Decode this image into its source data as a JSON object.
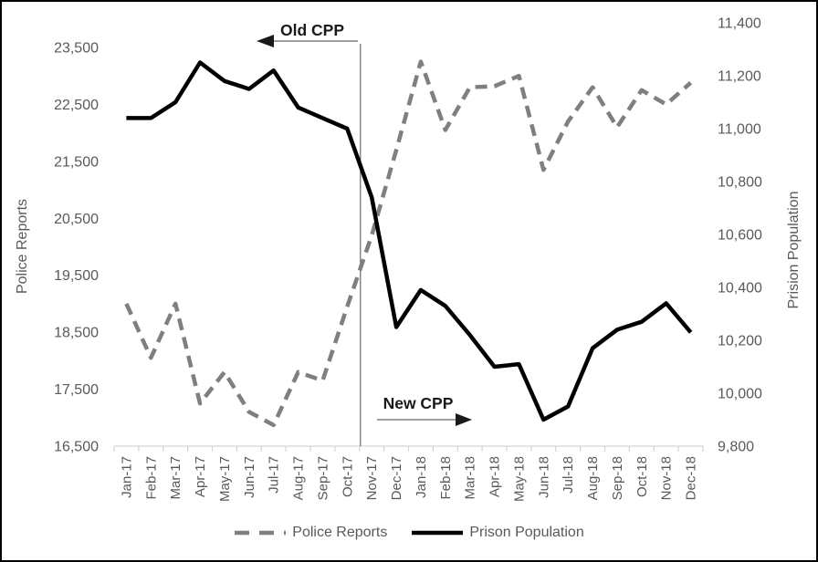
{
  "chart_data": {
    "type": "line",
    "title": "",
    "x_categories": [
      "Jan-17",
      "Feb-17",
      "Mar-17",
      "Apr-17",
      "May-17",
      "Jun-17",
      "Jul-17",
      "Aug-17",
      "Sep-17",
      "Oct-17",
      "Nov-17",
      "Dec-17",
      "Jan-18",
      "Feb-18",
      "Mar-18",
      "Apr-18",
      "May-18",
      "Jun-18",
      "Jul-18",
      "Aug-18",
      "Sep-18",
      "Oct-18",
      "Nov-18",
      "Dec-18"
    ],
    "series": [
      {
        "name": "Police Reports",
        "axis": "left",
        "line_style": "dashed",
        "color": "#7F7F7F",
        "values": [
          19000,
          18050,
          19000,
          17250,
          17800,
          17100,
          16870,
          17800,
          17650,
          18950,
          20200,
          21700,
          23250,
          22050,
          22800,
          22820,
          23000,
          21350,
          22200,
          22800,
          22100,
          22750,
          22500,
          22880
        ]
      },
      {
        "name": "Prison Population",
        "axis": "right",
        "line_style": "solid",
        "color": "#000000",
        "values": [
          11040,
          11040,
          11100,
          11250,
          11180,
          11150,
          11220,
          11080,
          11040,
          11000,
          10740,
          10250,
          10390,
          10330,
          10220,
          10100,
          10110,
          9900,
          9950,
          10170,
          10240,
          10270,
          10340,
          10230
        ]
      }
    ],
    "left_axis": {
      "label": "Police Reports",
      "tick_labels": [
        "16,500",
        "17,500",
        "18,500",
        "19,500",
        "20,500",
        "21,500",
        "22,500",
        "23,500"
      ],
      "range": [
        16500,
        23500
      ]
    },
    "right_axis": {
      "label": "Prision Population",
      "tick_labels": [
        "9,800",
        "10,000",
        "10,200",
        "10,400",
        "10,600",
        "10,800",
        "11,000",
        "11,200",
        "11,400"
      ],
      "range": [
        9800,
        11400
      ]
    },
    "annotations": [
      {
        "id": "old_cpp",
        "label": "Old CPP",
        "arrow_direction": "left"
      },
      {
        "id": "new_cpp",
        "label": "New CPP",
        "arrow_direction": "right"
      }
    ],
    "divider": {
      "between": [
        "Oct-17",
        "Nov-17"
      ]
    },
    "legend": {
      "position": "bottom",
      "items": [
        "Police Reports",
        "Prison Population"
      ]
    },
    "grid": "off"
  },
  "colors": {
    "axis_text": "#595959",
    "axis_line": "#d4d4d4",
    "annotation_arrow": "#808080",
    "divider": "#4d4d4d"
  }
}
